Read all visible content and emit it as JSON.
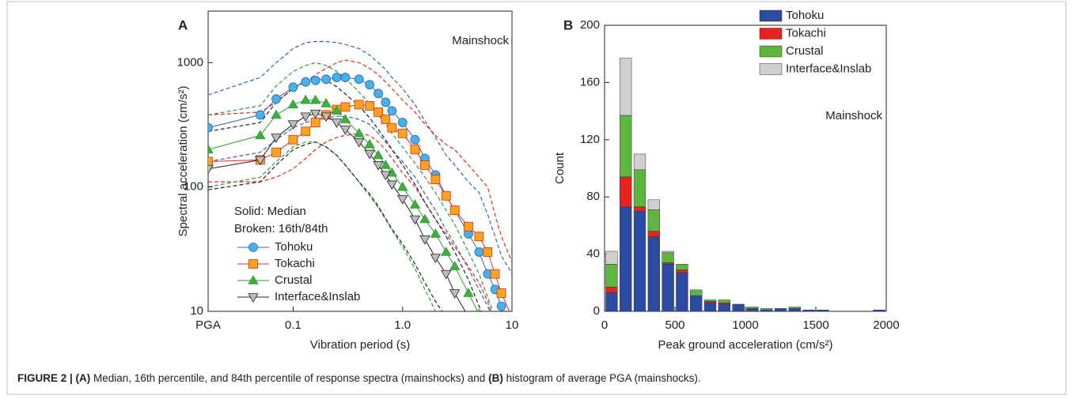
{
  "chart_data": [
    {
      "type": "line",
      "panel": "A",
      "xlog": true,
      "ylog": true,
      "x_label": "Vibration period (s)",
      "y_label": "Spectral acceleration (cm/s²)",
      "annotations": [
        "Mainshock",
        "Solid: Median",
        "Broken: 16th/84th"
      ],
      "xlim": [
        0.0167,
        10
      ],
      "ylim": [
        10,
        2600
      ],
      "xticks": [
        {
          "value": 0.0167,
          "label": "PGA"
        },
        0.1,
        {
          "value": 1,
          "label": "1.0"
        },
        10
      ],
      "yticks": [
        10,
        100,
        1000
      ],
      "legend": "lower left",
      "x": [
        0.0167,
        0.05,
        0.07,
        0.1,
        0.13,
        0.16,
        0.2,
        0.25,
        0.3,
        0.4,
        0.5,
        0.6,
        0.7,
        0.8,
        1.0,
        1.3,
        1.6,
        2,
        2.5,
        3,
        4,
        5,
        6,
        7,
        8,
        10
      ],
      "series": [
        {
          "name": "Tohoku",
          "color": "#2f63b0",
          "marker": "circle",
          "marker_fill": "#45b3ea",
          "values": [
            300,
            380,
            510,
            635,
            700,
            720,
            735,
            760,
            760,
            735,
            665,
            565,
            480,
            410,
            330,
            240,
            170,
            125,
            85,
            65,
            42,
            30,
            20,
            15,
            11,
            8
          ],
          "p84": [
            550,
            760,
            1000,
            1300,
            1450,
            1480,
            1480,
            1450,
            1400,
            1300,
            1150,
            1000,
            880,
            760,
            620,
            460,
            340,
            250,
            180,
            150,
            110,
            90,
            60,
            40,
            28,
            20
          ],
          "p16": [
            160,
            190,
            240,
            300,
            330,
            350,
            360,
            370,
            370,
            350,
            320,
            270,
            230,
            200,
            160,
            120,
            88,
            65,
            45,
            35,
            22,
            15,
            11,
            8,
            6,
            5
          ]
        },
        {
          "name": "Tokachi",
          "color": "#e62a1e",
          "marker": "square",
          "marker_fill": "#f8a51d",
          "values": [
            160,
            165,
            190,
            240,
            280,
            330,
            380,
            420,
            440,
            460,
            450,
            400,
            350,
            300,
            270,
            200,
            150,
            115,
            85,
            65,
            48,
            40,
            30,
            20,
            14,
            9
          ],
          "p84": [
            380,
            400,
            480,
            620,
            700,
            800,
            900,
            1000,
            1050,
            1000,
            900,
            800,
            700,
            620,
            500,
            400,
            320,
            260,
            220,
            200,
            150,
            120,
            100,
            60,
            40,
            25
          ],
          "p16": [
            110,
            110,
            120,
            140,
            170,
            200,
            230,
            250,
            260,
            270,
            260,
            230,
            200,
            170,
            130,
            100,
            75,
            55,
            42,
            33,
            23,
            17,
            12,
            8,
            6,
            5
          ]
        },
        {
          "name": "Crustal",
          "color": "#2e9a3a",
          "marker": "triangle",
          "marker_fill": "#3fae3c",
          "values": [
            200,
            260,
            380,
            460,
            500,
            500,
            470,
            410,
            350,
            270,
            220,
            180,
            150,
            130,
            100,
            72,
            55,
            42,
            30,
            23,
            14,
            9.5,
            null,
            null,
            null,
            null
          ],
          "p84": [
            380,
            450,
            650,
            850,
            950,
            1000,
            950,
            850,
            750,
            580,
            470,
            380,
            320,
            270,
            210,
            155,
            120,
            90,
            65,
            50,
            30,
            20,
            13,
            9,
            7,
            5
          ],
          "p16": [
            100,
            120,
            160,
            210,
            230,
            230,
            210,
            180,
            150,
            110,
            85,
            68,
            55,
            45,
            33,
            22,
            15,
            10,
            7,
            5,
            4,
            3,
            2,
            2,
            2,
            2
          ]
        },
        {
          "name": "Interface&Inslab",
          "color": "#222222",
          "marker": "triangle-down",
          "marker_fill": "#bdbdbd",
          "values": [
            140,
            165,
            250,
            320,
            370,
            390,
            370,
            330,
            290,
            230,
            185,
            150,
            125,
            105,
            80,
            55,
            38,
            27,
            20,
            14,
            9,
            null,
            null,
            null,
            null,
            null
          ],
          "p84": [
            280,
            330,
            480,
            620,
            720,
            760,
            720,
            640,
            560,
            450,
            360,
            290,
            240,
            200,
            150,
            105,
            75,
            55,
            40,
            30,
            18,
            11,
            8,
            6,
            5,
            4
          ],
          "p16": [
            95,
            110,
            150,
            200,
            220,
            230,
            210,
            180,
            150,
            110,
            88,
            70,
            56,
            46,
            35,
            24,
            17,
            12,
            9,
            7,
            5,
            4,
            3,
            3,
            2,
            2
          ]
        }
      ]
    },
    {
      "type": "histogram",
      "panel": "B",
      "stacked": true,
      "x_label": "Peak ground acceleration (cm/s²)",
      "y_label": "Count",
      "annotations": [
        "Mainshock"
      ],
      "xlim": [
        0,
        2000
      ],
      "ylim": [
        0,
        200
      ],
      "xticks": [
        0,
        500,
        1000,
        1500,
        2000
      ],
      "yticks": [
        0,
        40,
        80,
        120,
        160,
        200
      ],
      "legend": "upper right",
      "bins": [
        0,
        100,
        200,
        300,
        400,
        500,
        600,
        700,
        800,
        900,
        1000,
        1100,
        1200,
        1300,
        1400,
        1500,
        1600,
        1700,
        1800,
        1900,
        2000
      ],
      "series": [
        {
          "name": "Tohoku",
          "color": "#2b4aa2",
          "values": [
            13,
            73,
            70,
            52,
            33,
            27,
            11,
            6,
            5,
            5,
            2,
            1,
            2,
            2,
            1,
            1,
            0,
            0,
            0,
            1
          ]
        },
        {
          "name": "Tokachi",
          "color": "#e8221e",
          "values": [
            4,
            21,
            3,
            4,
            1,
            2,
            0,
            1,
            1,
            0,
            0,
            0,
            0,
            0,
            0,
            0,
            0,
            0,
            0,
            0
          ]
        },
        {
          "name": "Crustal",
          "color": "#5db63f",
          "values": [
            16,
            43,
            26,
            15,
            7,
            4,
            4,
            1,
            2,
            0,
            1,
            1,
            0,
            1,
            0,
            0,
            0,
            0,
            0,
            0
          ]
        },
        {
          "name": "Interface&Inslab",
          "color": "#d0cfcd",
          "values": [
            9,
            40,
            11,
            7,
            1,
            0,
            0,
            0,
            0,
            0,
            0,
            0,
            0,
            0,
            0,
            0,
            0,
            0,
            0,
            0
          ]
        }
      ]
    }
  ],
  "caption": [
    {
      "text": "FIGURE 2 | (A)",
      "bold": true
    },
    {
      "text": " Median, 16th percentile, and 84th percentile of response spectra (mainshocks) and ",
      "bold": false
    },
    {
      "text": "(B)",
      "bold": true
    },
    {
      "text": " histogram of average PGA (mainshocks).",
      "bold": false
    }
  ]
}
